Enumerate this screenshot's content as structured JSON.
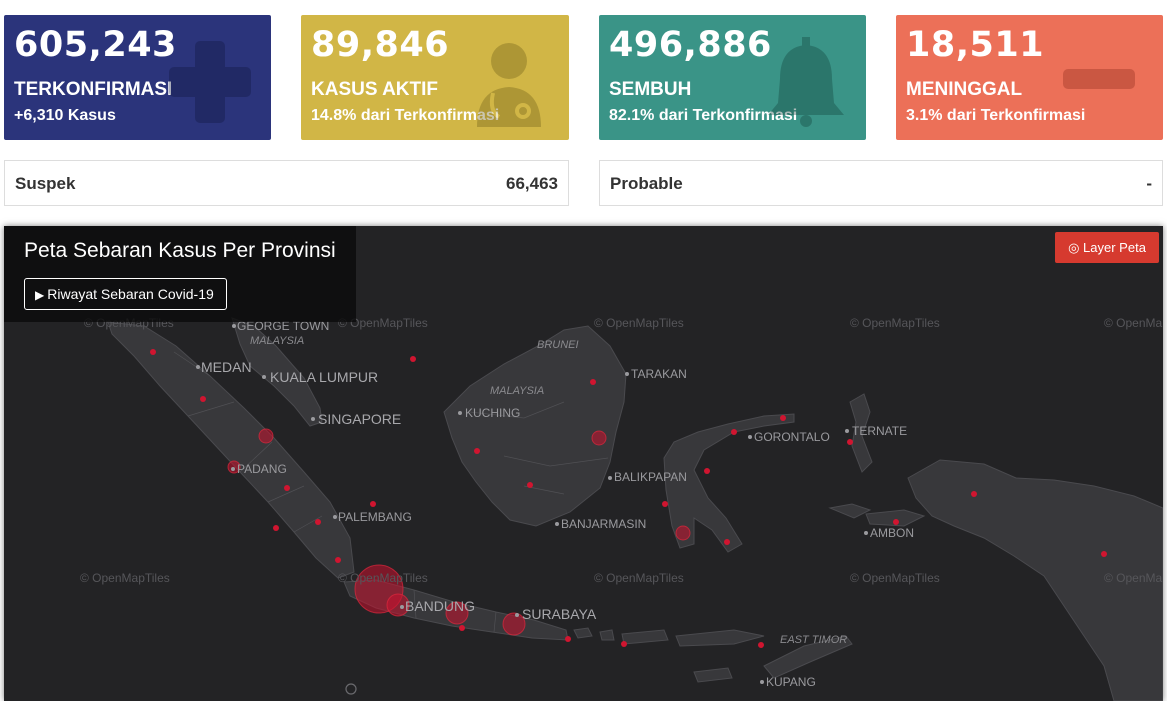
{
  "stats": [
    {
      "number": "605,243",
      "label": "TERKONFIRMASI",
      "sub": "+6,310 Kasus",
      "icon": "plus-icon",
      "color": "#2b347b"
    },
    {
      "number": "89,846",
      "label": "KASUS AKTIF",
      "sub": "14.8% dari Terkonfirmasi",
      "icon": "doctor-icon",
      "color": "#d1b646"
    },
    {
      "number": "496,886",
      "label": "SEMBUH",
      "sub": "82.1% dari Terkonfirmasi",
      "icon": "bell-icon",
      "color": "#3a9487"
    },
    {
      "number": "18,511",
      "label": "MENINGGAL",
      "sub": "3.1% dari Terkonfirmasi",
      "icon": "minus-icon",
      "color": "#ec7058"
    }
  ],
  "mini": {
    "suspek": {
      "label": "Suspek",
      "value": "66,463"
    },
    "probable": {
      "label": "Probable",
      "value": "-"
    }
  },
  "map": {
    "title": "Peta Sebaran Kasus Per Provinsi",
    "history_button": "Riwayat Sebaran Covid-19",
    "play_icon": "play-icon",
    "layer_button": "Layer Peta",
    "layer_icon": "target-icon",
    "accent": "#d63a2f",
    "attribution": "© OpenMapTiles",
    "cities": {
      "george_town": "GEORGE TOWN",
      "medan": "MEDAN",
      "kuala_lumpur": "KUALA LUMPUR",
      "singapore": "SINGAPORE",
      "padang": "PADANG",
      "palembang": "PALEMBANG",
      "bandung": "BANDUNG",
      "surabaya": "SURABAYA",
      "kuching": "KUCHING",
      "tarakan": "TARAKAN",
      "balikpapan": "BALIKPAPAN",
      "banjarmasin": "BANJARMASIN",
      "gorontalo": "GORONTALO",
      "ternate": "TERNATE",
      "ambon": "AMBON",
      "kupang": "KUPANG"
    },
    "countries": {
      "malaysia_w": "MALAYSIA",
      "brunei": "BRUNEI",
      "malaysia_e": "MALAYSIA",
      "east_timor": "EAST TIMOR"
    }
  }
}
